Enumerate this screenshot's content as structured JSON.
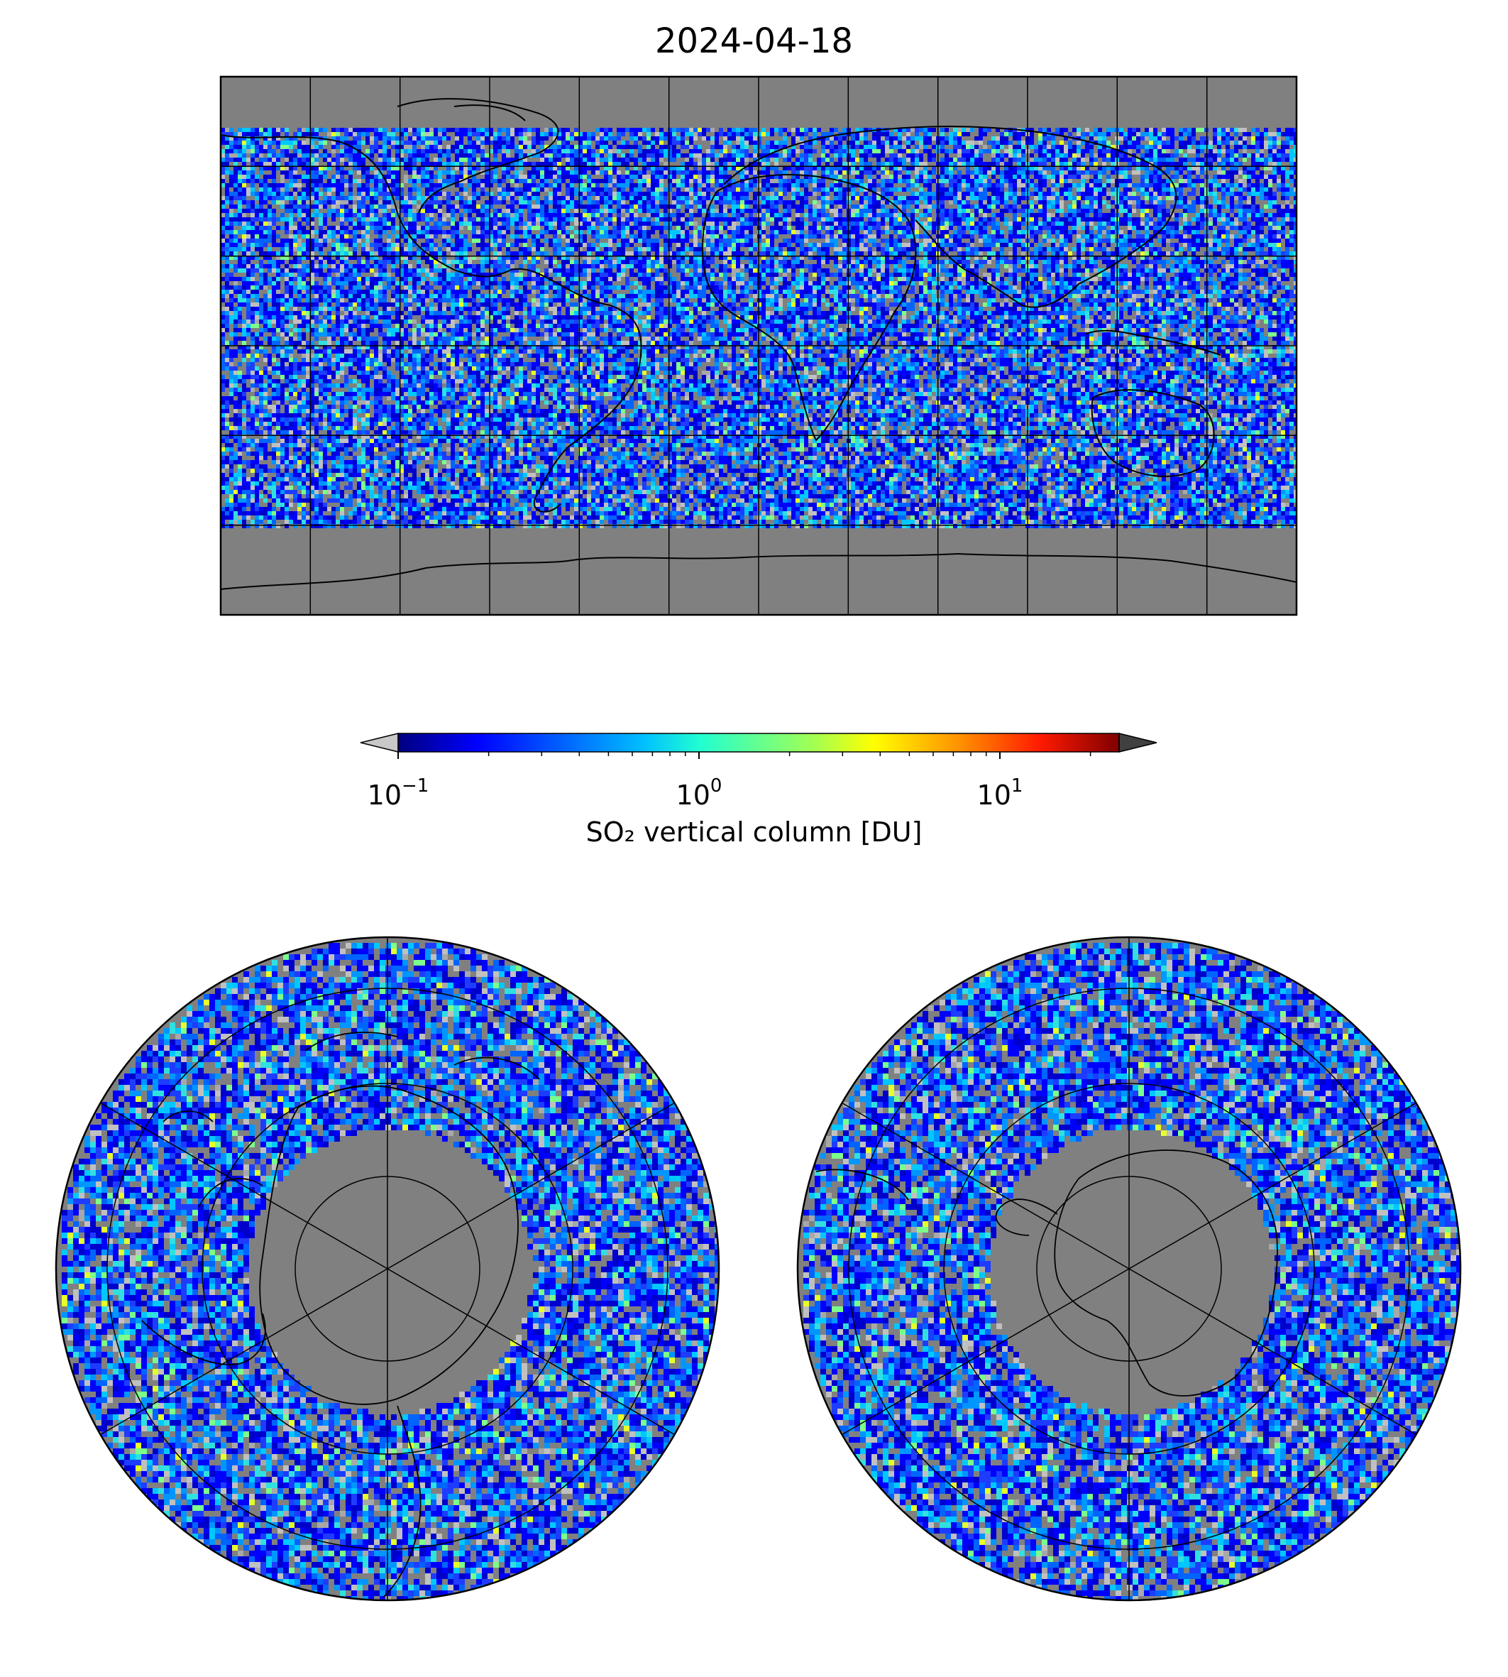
{
  "title": "2024-04-18",
  "colorbar": {
    "label": "SO₂ vertical column [DU]",
    "scale": "log",
    "range": [
      0.1,
      25
    ],
    "ticks": [
      {
        "base": "10",
        "exp": "−1",
        "value": 0.1
      },
      {
        "base": "10",
        "exp": "0",
        "value": 1
      },
      {
        "base": "10",
        "exp": "1",
        "value": 10
      }
    ],
    "under_color": "#c8c8c8",
    "over_color": "#404040",
    "colormap": "jet"
  },
  "colors": {
    "missing_data": "#808080",
    "frame": "#000000"
  },
  "panels": [
    {
      "id": "global",
      "projection": "plate-carree"
    },
    {
      "id": "north-polar",
      "projection": "north-polar-stereographic"
    },
    {
      "id": "south-polar",
      "projection": "south-polar-stereographic"
    }
  ]
}
